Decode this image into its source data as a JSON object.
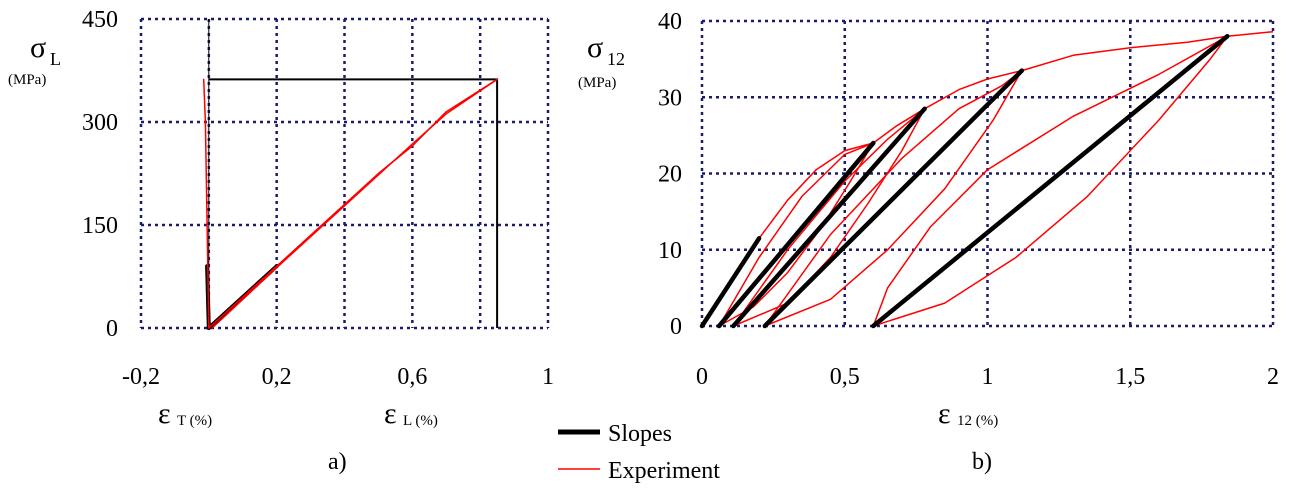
{
  "legend": {
    "slopes_label": "Slopes",
    "experiment_label": "Experiment",
    "slopes_color": "#000000",
    "experiment_color": "#ff0000"
  },
  "grid_color": "#1a1a6e",
  "chart_data": [
    {
      "type": "line",
      "panel_label": "a)",
      "ylabel": {
        "symbol": "σ",
        "sub": "L",
        "unit": "(MPa)"
      },
      "xlabel_T": {
        "symbol": "ε",
        "sub": "T (%)"
      },
      "xlabel_L": {
        "symbol": "ε",
        "sub": "L (%)"
      },
      "xlim": [
        -0.2,
        1.0
      ],
      "ylim": [
        0,
        450
      ],
      "x_ticks": [
        -0.2,
        0.2,
        0.6,
        1.0
      ],
      "x_tick_labels": [
        "-0,2",
        "0,2",
        "0,6",
        "1"
      ],
      "x_grid": [
        -0.2,
        0.0,
        0.2,
        0.4,
        0.6,
        0.8,
        1.0
      ],
      "y_ticks": [
        0,
        150,
        300,
        450
      ],
      "y_tick_labels": [
        "0",
        "150",
        "300",
        "450"
      ],
      "grid": true,
      "series": [
        {
          "name": "Slopes",
          "points": [
            [
              0.0,
              0
            ],
            [
              0.2,
              90
            ]
          ]
        },
        {
          "name": "Slopes",
          "points": [
            [
              -0.005,
              90
            ],
            [
              0.0,
              0
            ]
          ]
        },
        {
          "name": "Experiment",
          "points": [
            [
              0.0,
              0
            ],
            [
              0.1,
              45
            ],
            [
              0.3,
              135
            ],
            [
              0.5,
              225
            ],
            [
              0.6,
              265
            ],
            [
              0.7,
              315
            ],
            [
              0.85,
              362
            ]
          ]
        },
        {
          "name": "Experiment",
          "points": [
            [
              0.01,
              0
            ],
            [
              0.2,
              88
            ],
            [
              0.4,
              178
            ],
            [
              0.6,
              268
            ],
            [
              0.7,
              312
            ],
            [
              0.85,
              362
            ]
          ]
        },
        {
          "name": "Experiment",
          "points": [
            [
              0.0,
              0
            ],
            [
              -0.005,
              150
            ],
            [
              -0.01,
              300
            ],
            [
              -0.015,
              362
            ]
          ]
        }
      ],
      "extra_lines": [
        {
          "name": "box",
          "points": [
            [
              0.0,
              362
            ],
            [
              0.85,
              362
            ],
            [
              0.85,
              0
            ]
          ]
        },
        {
          "name": "axis",
          "points": [
            [
              0.0,
              450
            ],
            [
              0.0,
              0
            ]
          ]
        }
      ]
    },
    {
      "type": "line",
      "panel_label": "b)",
      "ylabel": {
        "symbol": "σ",
        "sub": "12",
        "unit": "(MPa)"
      },
      "xlabel": {
        "symbol": "ε",
        "sub": "12 (%)"
      },
      "xlim": [
        0,
        2
      ],
      "ylim": [
        0,
        40
      ],
      "x_ticks": [
        0,
        0.5,
        1,
        1.5,
        2
      ],
      "x_tick_labels": [
        "0",
        "0,5",
        "1",
        "1,5",
        "2"
      ],
      "y_ticks": [
        0,
        10,
        20,
        30,
        40
      ],
      "y_tick_labels": [
        "0",
        "10",
        "20",
        "30",
        "40"
      ],
      "grid": true,
      "slopes": [
        {
          "name": "Slopes",
          "points": [
            [
              0.0,
              0
            ],
            [
              0.2,
              11.5
            ]
          ]
        },
        {
          "name": "Slopes",
          "points": [
            [
              0.06,
              0
            ],
            [
              0.6,
              24
            ]
          ]
        },
        {
          "name": "Slopes",
          "points": [
            [
              0.11,
              0
            ],
            [
              0.78,
              28.5
            ]
          ]
        },
        {
          "name": "Slopes",
          "points": [
            [
              0.22,
              0
            ],
            [
              1.12,
              33.5
            ]
          ]
        },
        {
          "name": "Slopes",
          "points": [
            [
              0.6,
              0
            ],
            [
              1.84,
              38
            ]
          ]
        }
      ],
      "experiment": [
        {
          "name": "Experiment",
          "points": [
            [
              0.0,
              0
            ],
            [
              0.05,
              3
            ],
            [
              0.1,
              5.8
            ],
            [
              0.15,
              8.6
            ],
            [
              0.2,
              11.5
            ]
          ]
        },
        {
          "name": "Experiment",
          "points": [
            [
              0.2,
              11.5
            ],
            [
              0.3,
              16.5
            ],
            [
              0.4,
              20.5
            ],
            [
              0.5,
              23
            ],
            [
              0.6,
              24
            ]
          ]
        },
        {
          "name": "Experiment",
          "points": [
            [
              0.6,
              24
            ],
            [
              0.52,
              19
            ],
            [
              0.42,
              13
            ],
            [
              0.3,
              7
            ],
            [
              0.18,
              2.5
            ],
            [
              0.06,
              0
            ]
          ]
        },
        {
          "name": "Experiment",
          "points": [
            [
              0.06,
              0
            ],
            [
              0.2,
              9
            ],
            [
              0.35,
              17
            ],
            [
              0.5,
              22.5
            ],
            [
              0.6,
              24
            ]
          ]
        },
        {
          "name": "Experiment",
          "points": [
            [
              0.6,
              24
            ],
            [
              0.68,
              26.2
            ],
            [
              0.78,
              28.5
            ]
          ]
        },
        {
          "name": "Experiment",
          "points": [
            [
              0.78,
              28.5
            ],
            [
              0.7,
              23
            ],
            [
              0.58,
              16
            ],
            [
              0.45,
              9
            ],
            [
              0.3,
              3
            ],
            [
              0.11,
              0
            ]
          ]
        },
        {
          "name": "Experiment",
          "points": [
            [
              0.11,
              0
            ],
            [
              0.3,
              10
            ],
            [
              0.5,
              19
            ],
            [
              0.65,
              24.5
            ],
            [
              0.78,
              28.5
            ]
          ]
        },
        {
          "name": "Experiment",
          "points": [
            [
              0.78,
              28.5
            ],
            [
              0.9,
              31
            ],
            [
              1.0,
              32.4
            ],
            [
              1.12,
              33.5
            ]
          ]
        },
        {
          "name": "Experiment",
          "points": [
            [
              1.12,
              33.5
            ],
            [
              1.02,
              27
            ],
            [
              0.85,
              18
            ],
            [
              0.65,
              10
            ],
            [
              0.45,
              3.5
            ],
            [
              0.22,
              0
            ]
          ]
        },
        {
          "name": "Experiment",
          "points": [
            [
              0.22,
              0
            ],
            [
              0.45,
              12
            ],
            [
              0.7,
              22
            ],
            [
              0.9,
              28.5
            ],
            [
              1.05,
              31.5
            ],
            [
              1.12,
              33.5
            ]
          ]
        },
        {
          "name": "Experiment",
          "points": [
            [
              1.12,
              33.5
            ],
            [
              1.3,
              35.5
            ],
            [
              1.5,
              36.5
            ],
            [
              1.7,
              37.2
            ],
            [
              1.84,
              38
            ],
            [
              2.0,
              38.6
            ]
          ]
        },
        {
          "name": "Experiment",
          "points": [
            [
              1.84,
              38
            ],
            [
              1.78,
              35
            ],
            [
              1.6,
              27
            ],
            [
              1.35,
              17
            ],
            [
              1.1,
              9
            ],
            [
              0.85,
              3
            ],
            [
              0.6,
              0
            ]
          ]
        },
        {
          "name": "Experiment",
          "points": [
            [
              0.6,
              0
            ],
            [
              0.65,
              5
            ],
            [
              0.8,
              13
            ],
            [
              1.0,
              20.5
            ],
            [
              1.3,
              27.5
            ],
            [
              1.6,
              33
            ],
            [
              1.84,
              38
            ]
          ]
        }
      ]
    }
  ]
}
